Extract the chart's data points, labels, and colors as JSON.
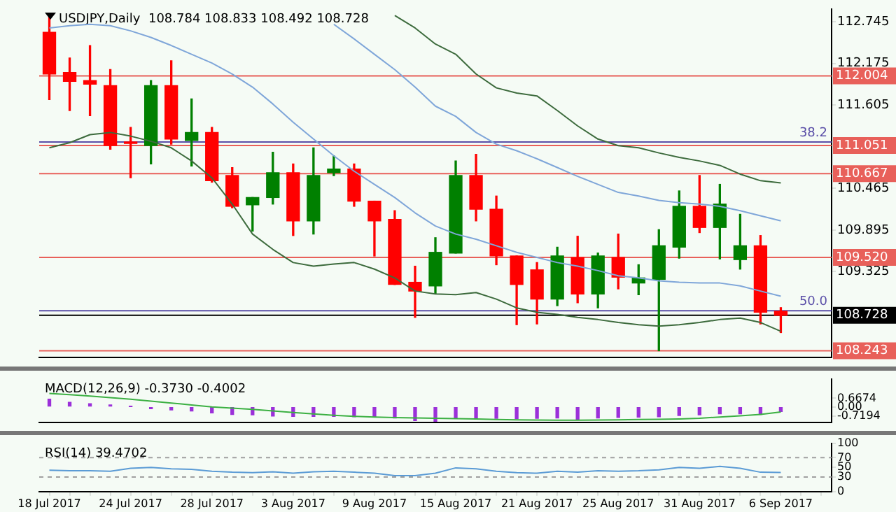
{
  "chart_data": [
    {
      "type": "candlestick",
      "title": "USDJPY,Daily  108.784 108.833 108.492 108.728",
      "tick_labels": "y",
      "ohlc": [
        [
          112.6,
          112.85,
          111.68,
          112.03
        ],
        [
          112.05,
          112.25,
          111.53,
          111.93
        ],
        [
          111.94,
          112.42,
          111.46,
          111.89
        ],
        [
          111.87,
          112.09,
          111.0,
          111.05
        ],
        [
          111.1,
          111.3,
          110.61,
          111.08
        ],
        [
          111.05,
          111.94,
          110.8,
          111.87
        ],
        [
          111.87,
          112.21,
          111.07,
          111.14
        ],
        [
          111.12,
          111.69,
          110.77,
          111.23
        ],
        [
          111.23,
          111.3,
          110.55,
          110.57
        ],
        [
          110.64,
          110.75,
          110.2,
          110.22
        ],
        [
          110.24,
          110.34,
          109.88,
          110.34
        ],
        [
          110.34,
          110.96,
          110.25,
          110.68
        ],
        [
          110.68,
          110.8,
          109.82,
          110.02
        ],
        [
          110.02,
          111.02,
          109.84,
          110.64
        ],
        [
          110.68,
          110.91,
          110.64,
          110.73
        ],
        [
          110.73,
          110.8,
          110.22,
          110.29
        ],
        [
          110.29,
          110.29,
          109.54,
          110.02
        ],
        [
          110.04,
          110.16,
          109.15,
          109.15
        ],
        [
          109.18,
          109.4,
          108.7,
          109.06
        ],
        [
          109.13,
          109.79,
          109.02,
          109.59
        ],
        [
          109.58,
          110.84,
          109.58,
          110.64
        ],
        [
          110.64,
          110.93,
          110.02,
          110.18
        ],
        [
          110.18,
          110.36,
          109.42,
          109.54
        ],
        [
          109.54,
          109.54,
          108.6,
          109.15
        ],
        [
          109.35,
          109.45,
          108.61,
          108.95
        ],
        [
          108.95,
          109.66,
          108.86,
          109.54
        ],
        [
          109.52,
          109.81,
          108.9,
          109.02
        ],
        [
          109.02,
          109.58,
          108.83,
          109.54
        ],
        [
          109.52,
          109.84,
          109.09,
          109.25
        ],
        [
          109.17,
          109.42,
          109.01,
          109.24
        ],
        [
          109.22,
          109.9,
          108.243,
          109.68
        ],
        [
          109.66,
          110.43,
          109.51,
          110.22
        ],
        [
          110.22,
          110.64,
          109.86,
          109.93
        ],
        [
          109.93,
          110.52,
          109.5,
          110.25
        ],
        [
          109.49,
          110.11,
          109.36,
          109.68
        ],
        [
          109.68,
          109.82,
          108.61,
          108.77
        ],
        [
          108.784,
          108.833,
          108.492,
          108.728
        ]
      ],
      "colors": [
        "#ff0000",
        "#ff0000",
        "#ff0000",
        "#ff0000",
        "#ff0000",
        "#008000",
        "#ff0000",
        "#008000",
        "#ff0000",
        "#ff0000",
        "#008000",
        "#008000",
        "#ff0000",
        "#008000",
        "#008000",
        "#ff0000",
        "#ff0000",
        "#ff0000",
        "#ff0000",
        "#008000",
        "#008000",
        "#ff0000",
        "#ff0000",
        "#ff0000",
        "#ff0000",
        "#008000",
        "#ff0000",
        "#008000",
        "#ff0000",
        "#008000",
        "#008000",
        "#008000",
        "#ff0000",
        "#008000",
        "#008000",
        "#ff0000",
        "#ff0000"
      ],
      "series": [
        {
          "type": "line",
          "color": "#3d6b3d",
          "values": [
            null,
            null,
            null,
            null,
            null,
            null,
            null,
            null,
            null,
            null,
            null,
            null,
            null,
            null,
            null,
            null,
            null,
            112.83,
            112.66,
            112.44,
            112.3,
            112.03,
            111.84,
            111.77,
            111.73,
            111.53,
            111.32,
            111.14,
            111.05,
            111.02,
            110.95,
            110.89,
            110.84,
            110.78,
            110.66,
            110.57,
            110.54
          ]
        },
        {
          "type": "line",
          "color": "#7fa6d9",
          "values": [
            null,
            null,
            null,
            null,
            null,
            null,
            null,
            null,
            null,
            null,
            null,
            null,
            null,
            null,
            112.71,
            112.51,
            112.3,
            112.09,
            111.85,
            111.59,
            111.45,
            111.23,
            111.07,
            110.98,
            110.87,
            110.75,
            110.63,
            110.52,
            110.41,
            110.36,
            110.3,
            110.27,
            110.25,
            110.22,
            110.16,
            110.09,
            110.02
          ]
        },
        {
          "type": "line",
          "color": "#7fa6d9",
          "values": [
            112.66,
            112.69,
            112.71,
            112.69,
            112.62,
            112.53,
            112.42,
            112.3,
            112.18,
            112.03,
            111.85,
            111.62,
            111.37,
            111.14,
            110.91,
            110.7,
            110.52,
            110.34,
            110.13,
            109.95,
            109.84,
            109.77,
            109.68,
            109.59,
            109.52,
            109.45,
            109.4,
            109.34,
            109.27,
            109.24,
            109.2,
            109.18,
            109.17,
            109.17,
            109.13,
            109.06,
            108.99
          ]
        },
        {
          "type": "line",
          "color": "#3d6b3d",
          "values": [
            111.02,
            111.09,
            111.2,
            111.23,
            111.18,
            111.11,
            111.02,
            110.84,
            110.61,
            110.25,
            109.84,
            109.63,
            109.45,
            109.4,
            109.43,
            109.45,
            109.36,
            109.24,
            109.06,
            109.02,
            109.01,
            109.04,
            108.95,
            108.83,
            108.77,
            108.74,
            108.7,
            108.67,
            108.63,
            108.6,
            108.58,
            108.6,
            108.63,
            108.67,
            108.69,
            108.63,
            108.51
          ]
        }
      ],
      "ylim": [
        108.15,
        112.92
      ],
      "yticks": [
        112.745,
        112.175,
        111.605,
        110.465,
        109.895,
        109.325
      ],
      "ref_lines": [
        {
          "axis": "y",
          "value": 112.004,
          "label": "112.004",
          "color": "#e8605a"
        },
        {
          "axis": "y",
          "value": 111.1,
          "color": "#5b4fa8"
        },
        {
          "axis": "y",
          "value": 111.051,
          "label": "111.051",
          "color": "#e8605a"
        },
        {
          "axis": "y",
          "value": 110.667,
          "label": "110.667",
          "color": "#e8605a"
        },
        {
          "axis": "y",
          "value": 109.52,
          "label": "109.520",
          "color": "#e8605a"
        },
        {
          "axis": "y",
          "value": 108.79,
          "color": "#5b4fa8"
        },
        {
          "axis": "y",
          "value": 108.728,
          "label": "108.728",
          "color": "#000000"
        },
        {
          "axis": "y",
          "value": 108.243,
          "label": "108.243",
          "color": "#e8605a"
        }
      ],
      "annotations": [
        {
          "text": "38.2",
          "y": 111.1
        },
        {
          "text": "50.0",
          "y": 108.79
        }
      ]
    },
    {
      "type": "bar",
      "title": "MACD(12,26,9) -0.3730 -0.4002",
      "tick_labels": "y",
      "series": [
        {
          "type": "bar",
          "color": "#9b30d9",
          "values": [
            0.6,
            0.35,
            0.25,
            0.15,
            0.02,
            -0.15,
            -0.24,
            -0.33,
            -0.48,
            -0.6,
            -0.63,
            -0.72,
            -0.75,
            -0.75,
            -0.75,
            -0.78,
            -0.81,
            -0.87,
            -1.08,
            -1.14,
            -0.9,
            -0.9,
            -0.9,
            -0.93,
            -0.9,
            -0.87,
            -0.99,
            -0.87,
            -0.84,
            -0.81,
            -0.78,
            -0.69,
            -0.63,
            -0.54,
            -0.54,
            -0.6,
            -0.373
          ]
        },
        {
          "type": "line",
          "color": "#3cb043",
          "values": [
            1.05,
            0.95,
            0.85,
            0.72,
            0.6,
            0.45,
            0.3,
            0.15,
            0,
            -0.1,
            -0.2,
            -0.32,
            -0.44,
            -0.55,
            -0.66,
            -0.75,
            -0.8,
            -0.84,
            -0.87,
            -0.9,
            -0.93,
            -0.96,
            -0.99,
            -1.02,
            -1.04,
            -1.05,
            -1.05,
            -1.04,
            -1.02,
            -1,
            -0.98,
            -0.95,
            -0.9,
            -0.8,
            -0.7,
            -0.6,
            -0.4002
          ]
        }
      ],
      "ylim": [
        -1.25,
        2.2
      ],
      "yticks": [
        0.6674,
        {
          "value": 0,
          "label": "0.00"
        },
        -0.7194
      ]
    },
    {
      "type": "line",
      "title": "RSI(14) 39.4702",
      "categories": [
        "18 Jul 2017",
        null,
        null,
        null,
        "24 Jul 2017",
        null,
        null,
        null,
        "28 Jul 2017",
        null,
        null,
        null,
        "3 Aug 2017",
        null,
        null,
        null,
        "9 Aug 2017",
        null,
        null,
        null,
        "15 Aug 2017",
        null,
        null,
        null,
        "21 Aug 2017",
        null,
        null,
        null,
        "25 Aug 2017",
        null,
        null,
        null,
        "31 Aug 2017",
        null,
        null,
        null,
        "6 Sep 2017"
      ],
      "series": [
        {
          "color": "#5b9bd5",
          "values": [
            44,
            43,
            43,
            42,
            48,
            50,
            47,
            46,
            42,
            40,
            39,
            41,
            38,
            41,
            42,
            40,
            38,
            33,
            33,
            38,
            49,
            47,
            42,
            39,
            38,
            42,
            40,
            43,
            42,
            43,
            45,
            50,
            48,
            52,
            48,
            40,
            39.4702
          ]
        }
      ],
      "ylim": [
        0,
        100
      ],
      "yticks": [
        0,
        30,
        50,
        70,
        100
      ],
      "ref_lines": [
        {
          "axis": "y",
          "value": 70,
          "color": "#a0a0a0",
          "line_style": "dashed"
        },
        {
          "axis": "y",
          "value": 30,
          "color": "#a0a0a0",
          "line_style": "dashed"
        }
      ]
    }
  ]
}
